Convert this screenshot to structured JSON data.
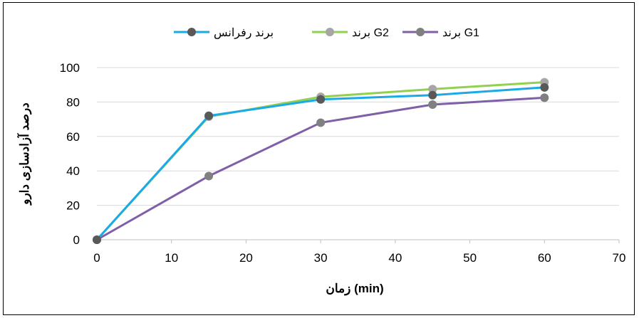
{
  "chart_data": {
    "type": "line",
    "title": "",
    "xlabel": "زمان (min)",
    "ylabel": "درصد آزادسازی دارو",
    "xlim": [
      0,
      70
    ],
    "ylim": [
      0,
      100
    ],
    "x_ticks": [
      0,
      10,
      20,
      30,
      40,
      50,
      60,
      70
    ],
    "y_ticks": [
      0,
      20,
      40,
      60,
      80,
      100
    ],
    "grid": "horizontal",
    "legend_position": "top",
    "series": [
      {
        "name": "برند رفرانس",
        "x": [
          0,
          15,
          30,
          45,
          60
        ],
        "y": [
          0,
          72,
          81.5,
          84,
          88.5
        ],
        "line_color": "#1AABE6",
        "marker_color": "#595959"
      },
      {
        "name": "برند G2",
        "x": [
          0,
          15,
          30,
          45,
          60
        ],
        "y": [
          0,
          71.5,
          83,
          87.5,
          91.5
        ],
        "line_color": "#92D050",
        "marker_color": "#A6A6A6"
      },
      {
        "name": "برند G1",
        "x": [
          0,
          15,
          30,
          45,
          60
        ],
        "y": [
          0,
          37,
          68,
          78.5,
          82.5
        ],
        "line_color": "#7F5FA8",
        "marker_color": "#808080"
      }
    ]
  }
}
